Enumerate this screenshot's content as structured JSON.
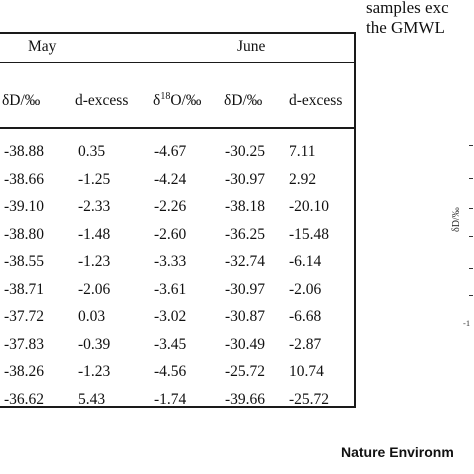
{
  "side_text": [
    "samples exc",
    "the GMWL"
  ],
  "table": {
    "groups": [
      "May",
      "June"
    ],
    "columns": [
      {
        "base": "δD/‰",
        "sup": "",
        "suffix": ""
      },
      {
        "base": "d-excess",
        "sup": "",
        "suffix": ""
      },
      {
        "base": "δ",
        "sup": "18",
        "suffix": "O/‰"
      },
      {
        "base": "δD/‰",
        "sup": "",
        "suffix": ""
      },
      {
        "base": "d-excess",
        "sup": "",
        "suffix": ""
      }
    ],
    "rows": [
      [
        "-38.88",
        "0.35",
        "-4.67",
        "-30.25",
        "7.11"
      ],
      [
        "-38.66",
        "-1.25",
        "-4.24",
        "-30.97",
        "2.92"
      ],
      [
        "-39.10",
        "-2.33",
        "-2.26",
        "-38.18",
        "-20.10"
      ],
      [
        "-38.80",
        "-1.48",
        "-2.60",
        "-36.25",
        "-15.48"
      ],
      [
        "-38.55",
        "-1.23",
        "-3.33",
        "-32.74",
        "-6.14"
      ],
      [
        "-38.71",
        "-2.06",
        "-3.61",
        "-30.97",
        "-2.06"
      ],
      [
        "-37.72",
        "0.03",
        "-3.02",
        "-30.87",
        "-6.68"
      ],
      [
        "-37.83",
        "-0.39",
        "-3.45",
        "-30.49",
        "-2.87"
      ],
      [
        "-38.26",
        "-1.23",
        "-4.56",
        "-25.72",
        "10.74"
      ],
      [
        "-36.62",
        "5.43",
        "-1.74",
        "-39.66",
        "-25.72"
      ]
    ]
  },
  "figure_fragment": {
    "axis_label": "δD/‰",
    "tick_label": "-1"
  },
  "journal_name": "Nature Environm"
}
